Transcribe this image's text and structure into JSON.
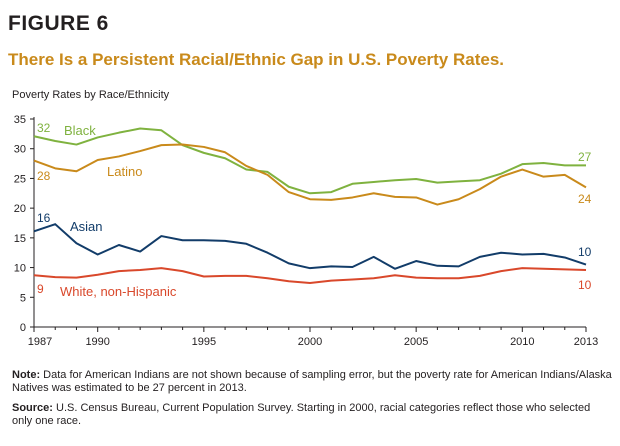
{
  "figure": {
    "label": "FIGURE 6",
    "title": "There Is a Persistent Racial/Ethnic Gap in U.S. Poverty Rates.",
    "subtitle": "Poverty Rates by Race/Ethnicity"
  },
  "notes": {
    "note_label": "Note:",
    "note_text": " Data for American Indians are not shown because of sampling error, but the poverty rate for American Indians/Alaska Natives was estimated to be 27 percent in 2013.",
    "source_label": "Source:",
    "source_text": " U.S. Census Bureau, Current Population Survey. Starting in 2000, racial categories reflect those who selected only one race."
  },
  "chart_data": {
    "type": "line",
    "title": "There Is a Persistent Racial/Ethnic Gap in U.S. Poverty Rates.",
    "subtitle": "Poverty Rates by Race/Ethnicity",
    "xlabel": "",
    "ylabel": "",
    "xlim": [
      1987,
      2013
    ],
    "ylim": [
      0,
      35
    ],
    "x_ticks": [
      1987,
      1990,
      1995,
      2000,
      2005,
      2010,
      2013
    ],
    "y_ticks": [
      0,
      5,
      10,
      15,
      20,
      25,
      30,
      35
    ],
    "grid": false,
    "x": [
      1987,
      1988,
      1989,
      1990,
      1991,
      1992,
      1993,
      1994,
      1995,
      1996,
      1997,
      1998,
      1999,
      2000,
      2001,
      2002,
      2003,
      2004,
      2005,
      2006,
      2007,
      2008,
      2009,
      2010,
      2011,
      2012,
      2013
    ],
    "series": [
      {
        "name": "Black",
        "color": "#7fb23f",
        "start_label": "32",
        "end_label": "27",
        "values": [
          32.1,
          31.3,
          30.7,
          31.9,
          32.7,
          33.4,
          33.1,
          30.6,
          29.3,
          28.4,
          26.5,
          26.1,
          23.6,
          22.5,
          22.7,
          24.1,
          24.4,
          24.7,
          24.9,
          24.3,
          24.5,
          24.7,
          25.8,
          27.4,
          27.6,
          27.2,
          27.2
        ]
      },
      {
        "name": "Latino",
        "color": "#c98a1b",
        "start_label": "28",
        "end_label": "24",
        "values": [
          28.0,
          26.7,
          26.2,
          28.1,
          28.7,
          29.6,
          30.6,
          30.7,
          30.3,
          29.4,
          27.1,
          25.6,
          22.7,
          21.5,
          21.4,
          21.8,
          22.5,
          21.9,
          21.8,
          20.6,
          21.5,
          23.2,
          25.3,
          26.5,
          25.3,
          25.6,
          23.5
        ]
      },
      {
        "name": "Asian",
        "color": "#123c69",
        "start_label": "16",
        "end_label": "10",
        "values": [
          16.1,
          17.3,
          14.1,
          12.2,
          13.8,
          12.7,
          15.3,
          14.6,
          14.6,
          14.5,
          14.0,
          12.5,
          10.7,
          9.9,
          10.2,
          10.1,
          11.8,
          9.8,
          11.1,
          10.3,
          10.2,
          11.8,
          12.5,
          12.2,
          12.3,
          11.7,
          10.5
        ]
      },
      {
        "name": "White, non-Hispanic",
        "color": "#d9482b",
        "start_label": "9",
        "end_label": "10",
        "values": [
          8.7,
          8.4,
          8.3,
          8.8,
          9.4,
          9.6,
          9.9,
          9.4,
          8.5,
          8.6,
          8.6,
          8.2,
          7.7,
          7.4,
          7.8,
          8.0,
          8.2,
          8.7,
          8.3,
          8.2,
          8.2,
          8.6,
          9.4,
          9.9,
          9.8,
          9.7,
          9.6
        ]
      }
    ]
  }
}
